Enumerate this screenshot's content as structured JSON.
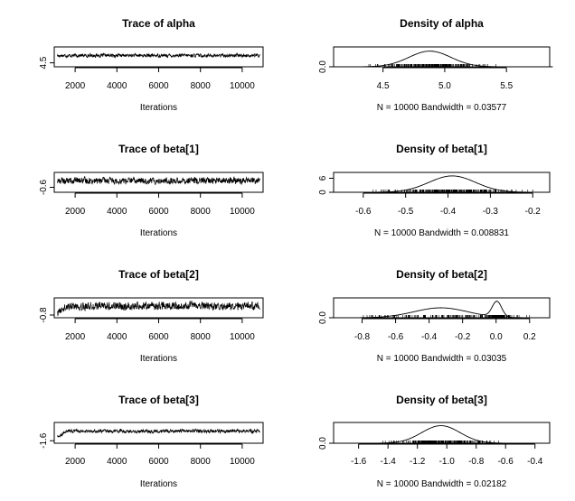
{
  "chart_data": [
    {
      "type": "line",
      "title": "Trace of alpha",
      "xlabel": "Iterations",
      "xlim": [
        1000,
        11000
      ],
      "xticks": [
        2000,
        4000,
        6000,
        8000,
        10000
      ],
      "ylim": [
        4.3,
        5.3
      ],
      "yticks": [
        4.5
      ],
      "x": [
        1000,
        11000
      ],
      "trace_mean": 4.87,
      "trace_amplitude": 0.13
    },
    {
      "type": "line",
      "title": "Density of alpha",
      "xlabel": "N = 10000   Bandwidth = 0.03577",
      "xlim": [
        4.1,
        5.85
      ],
      "xticks": [
        4.5,
        5.0,
        5.5
      ],
      "ylim": [
        0,
        1.9
      ],
      "yticks": [
        0.0
      ],
      "density": {
        "mu": 4.88,
        "sigma": 0.17,
        "peak": 1.5
      },
      "rug_range": [
        4.3,
        5.8
      ]
    },
    {
      "type": "line",
      "title": "Trace of beta[1]",
      "xlabel": "Iterations",
      "xlim": [
        1000,
        11000
      ],
      "xticks": [
        2000,
        4000,
        6000,
        8000,
        10000
      ],
      "ylim": [
        -0.75,
        -0.15
      ],
      "yticks": [
        -0.6
      ],
      "trace_mean": -0.4,
      "trace_amplitude": 0.15
    },
    {
      "type": "line",
      "title": "Density of beta[1]",
      "xlabel": "N = 10000   Bandwidth = 0.008831",
      "xlim": [
        -0.67,
        -0.16
      ],
      "xticks": [
        -0.6,
        -0.5,
        -0.4,
        -0.3,
        -0.2
      ],
      "ylim": [
        0,
        8.5
      ],
      "yticks": [
        0,
        6
      ],
      "density": {
        "mu": -0.39,
        "sigma": 0.055,
        "peak": 7.0
      },
      "rug_range": [
        -0.6,
        -0.2
      ]
    },
    {
      "type": "line",
      "title": "Trace of beta[2]",
      "xlabel": "Iterations",
      "xlim": [
        1000,
        11000
      ],
      "xticks": [
        2000,
        4000,
        6000,
        8000,
        10000
      ],
      "ylim": [
        -0.95,
        0.15
      ],
      "yticks": [
        -0.8
      ],
      "trace_mean": -0.3,
      "trace_amplitude": 0.33
    },
    {
      "type": "line",
      "title": "Density of beta[2]",
      "xlabel": "N = 10000   Bandwidth = 0.03035",
      "xlim": [
        -0.97,
        0.32
      ],
      "xticks": [
        -0.8,
        -0.6,
        -0.4,
        -0.2,
        0.0,
        0.2
      ],
      "ylim": [
        0,
        5.0
      ],
      "yticks": [
        0.0
      ],
      "density_components": [
        {
          "mu": -0.33,
          "sigma": 0.16,
          "peak": 2.5
        },
        {
          "mu": 0.005,
          "sigma": 0.028,
          "peak": 3.9
        }
      ],
      "rug_range": [
        -0.8,
        0.2
      ]
    },
    {
      "type": "line",
      "title": "Trace of beta[3]",
      "xlabel": "Iterations",
      "xlim": [
        1000,
        11000
      ],
      "xticks": [
        2000,
        4000,
        6000,
        8000,
        10000
      ],
      "ylim": [
        -1.75,
        -0.5
      ],
      "yticks": [
        -1.6
      ],
      "trace_mean": -1.02,
      "trace_amplitude": 0.16
    },
    {
      "type": "line",
      "title": "Density of beta[3]",
      "xlabel": "N = 10000   Bandwidth = 0.02182",
      "xlim": [
        -1.77,
        -0.3
      ],
      "xticks": [
        -1.6,
        -1.4,
        -1.2,
        -1.0,
        -0.8,
        -0.6,
        -0.4
      ],
      "ylim": [
        0,
        2.6
      ],
      "yticks": [
        0.0
      ],
      "density": {
        "mu": -1.04,
        "sigma": 0.13,
        "peak": 2.2
      },
      "rug_range": [
        -1.5,
        -0.5
      ]
    }
  ]
}
